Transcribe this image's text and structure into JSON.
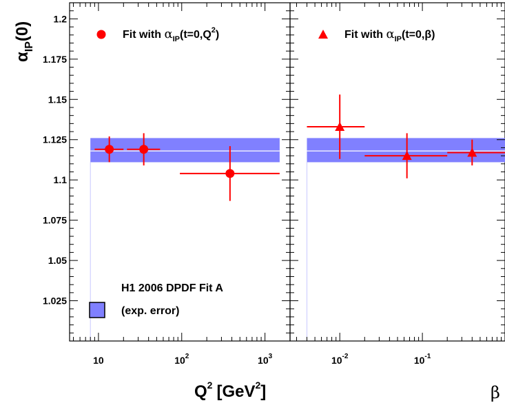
{
  "chart_data": {
    "type": "scatter",
    "ylabel": {
      "base": "α",
      "sub": "IP",
      "suffix": "(0)"
    },
    "ylim": [
      1.0,
      1.21
    ],
    "yticks": [
      {
        "value": 1.025,
        "label": "1.025"
      },
      {
        "value": 1.05,
        "label": "1.05"
      },
      {
        "value": 1.075,
        "label": "1.075"
      },
      {
        "value": 1.1,
        "label": "1.1"
      },
      {
        "value": 1.125,
        "label": "1.125"
      },
      {
        "value": 1.15,
        "label": "1.15"
      },
      {
        "value": 1.175,
        "label": "1.175"
      },
      {
        "value": 1.2,
        "label": "1.2"
      }
    ],
    "band": {
      "label_line1": "H1 2006 DPDF Fit A",
      "label_line2": "(exp. error)",
      "central": 1.118,
      "low": 1.111,
      "high": 1.126,
      "color": "#8080ff"
    },
    "panels": [
      {
        "id": "q2",
        "xscale": "log",
        "xlim": [
          4.5,
          2000
        ],
        "band_xrange": [
          8,
          1500
        ],
        "xlabel": {
          "base": "Q",
          "sup": "2",
          "unit_open": "[GeV",
          "unit_sup": "2",
          "unit_close": "]"
        },
        "xticks": [
          {
            "value": 10,
            "base": "10",
            "exp": ""
          },
          {
            "value": 100,
            "base": "10",
            "exp": "2"
          },
          {
            "value": 1000,
            "base": "10",
            "exp": "3"
          }
        ],
        "legend": {
          "prefix": "Fit with ",
          "alpha": "α",
          "sub": "IP",
          "suffix": "(t=0,Q",
          "sup": "2",
          "close": ")"
        },
        "marker": "circle",
        "color": "#ff0000",
        "points": [
          {
            "x": 13.5,
            "xlo": 9.0,
            "xhi": 20.0,
            "y": 1.119,
            "ylo": 1.111,
            "yhi": 1.127
          },
          {
            "x": 35,
            "xlo": 22.0,
            "xhi": 55.0,
            "y": 1.119,
            "ylo": 1.109,
            "yhi": 1.129
          },
          {
            "x": 380,
            "xlo": 95.0,
            "xhi": 1500.0,
            "y": 1.104,
            "ylo": 1.087,
            "yhi": 1.121
          }
        ]
      },
      {
        "id": "beta",
        "xscale": "log",
        "xlim": [
          0.0025,
          1.0
        ],
        "band_xrange": [
          0.004,
          1.0
        ],
        "xlabel": {
          "base": "β"
        },
        "xticks": [
          {
            "value": 0.01,
            "base": "10",
            "exp": "-2"
          },
          {
            "value": 0.1,
            "base": "10",
            "exp": "-1"
          }
        ],
        "legend": {
          "prefix": "Fit with ",
          "alpha": "α",
          "sub": "IP",
          "suffix": "(t=0,β)",
          "sup": "",
          "close": ""
        },
        "marker": "triangle",
        "color": "#ff0000",
        "points": [
          {
            "x": 0.01,
            "xlo": 0.004,
            "xhi": 0.02,
            "y": 1.133,
            "ylo": 1.113,
            "yhi": 1.153
          },
          {
            "x": 0.065,
            "xlo": 0.02,
            "xhi": 0.2,
            "y": 1.115,
            "ylo": 1.101,
            "yhi": 1.129
          },
          {
            "x": 0.4,
            "xlo": 0.2,
            "xhi": 1.0,
            "y": 1.117,
            "ylo": 1.109,
            "yhi": 1.125
          }
        ]
      }
    ]
  }
}
